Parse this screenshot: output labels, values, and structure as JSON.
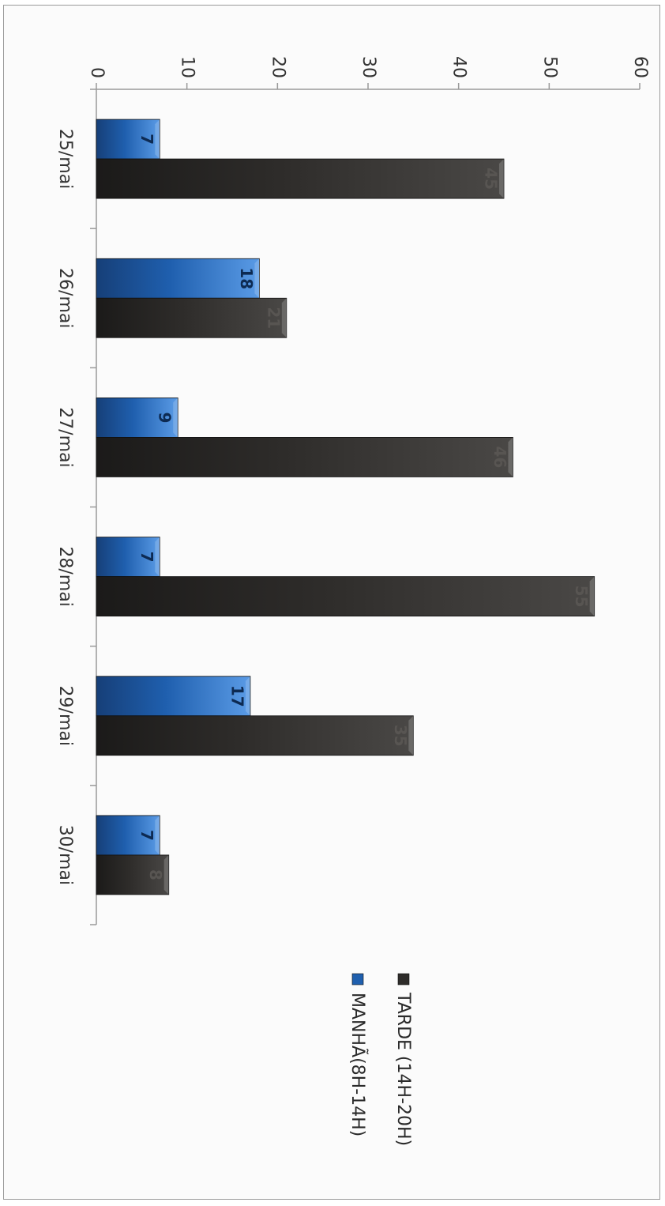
{
  "chart_data": {
    "type": "bar",
    "orientation": "rotated-90-clockwise",
    "categories": [
      "25/mai",
      "26/mai",
      "27/mai",
      "28/mai",
      "29/mai",
      "30/mai"
    ],
    "series": [
      {
        "name": "MANHÃ(8H-14H)",
        "values": [
          7,
          18,
          9,
          7,
          17,
          7
        ],
        "color": "#1f5fae"
      },
      {
        "name": "TARDE (14H-20H)",
        "values": [
          45,
          21,
          46,
          55,
          35,
          8
        ],
        "color": "#2e2c2a"
      }
    ],
    "ylim": [
      0,
      60
    ],
    "yticks": [
      0,
      10,
      20,
      30,
      40,
      50,
      60
    ],
    "data_labels": true,
    "legend": "right",
    "grid": false
  }
}
